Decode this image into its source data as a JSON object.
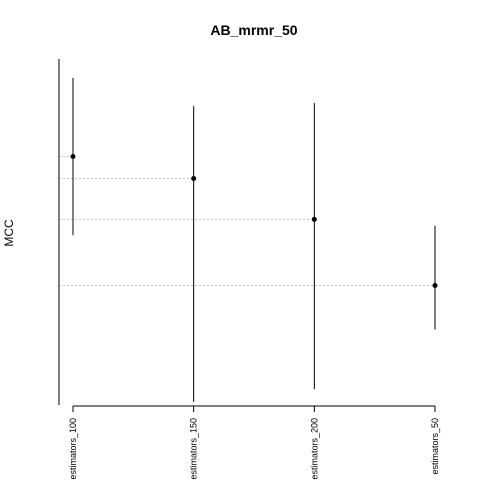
{
  "chart_data": {
    "type": "scatter",
    "title": "AB_mrmr_50",
    "xlabel": "",
    "ylabel": "MCC",
    "categories": [
      "estimators_100",
      "estimators_150",
      "estimators_200",
      "estimators_50"
    ],
    "series": [
      {
        "values": [
          0.62,
          0.55,
          0.42,
          0.21
        ],
        "lower": [
          0.37,
          -0.16,
          -0.12,
          0.07
        ],
        "upper": [
          0.87,
          0.78,
          0.79,
          0.4
        ]
      }
    ],
    "ylim": [
      -0.17,
      0.93
    ],
    "grid": false,
    "reference_lines": "dotted horizontal line at each point value",
    "colors": {
      "point": "#000000",
      "error_bar": "#000000",
      "reference_line": "#c8c8c8",
      "axis": "#000000"
    }
  }
}
